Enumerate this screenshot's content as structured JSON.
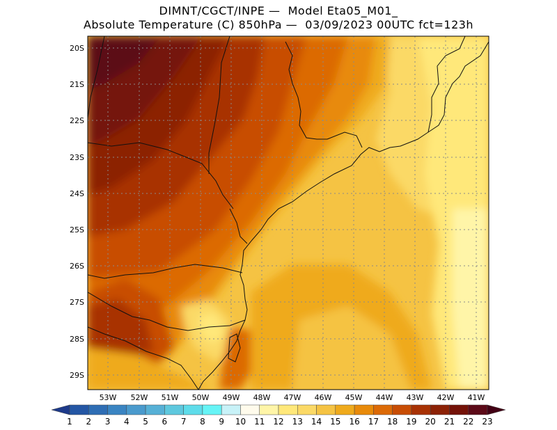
{
  "header": {
    "line1": "DIMNT/CGCT/INPE —  Model Eta05_M01_",
    "line2": "Absolute Temperature (C) 850hPa —  03/09/2023 00UTC fct=123h"
  },
  "map": {
    "variable": "Absolute Temperature (C) 850hPa",
    "lat_labels": [
      "20S",
      "21S",
      "22S",
      "23S",
      "24S",
      "25S",
      "26S",
      "27S",
      "28S",
      "29S"
    ],
    "lon_labels": [
      "53W",
      "52W",
      "51W",
      "50W",
      "49W",
      "48W",
      "47W",
      "46W",
      "45W",
      "44W",
      "43W",
      "42W",
      "41W"
    ]
  },
  "colorbar": {
    "labels": [
      "1",
      "2",
      "3",
      "4",
      "5",
      "6",
      "7",
      "8",
      "9",
      "10",
      "11",
      "12",
      "13",
      "14",
      "15",
      "16",
      "17",
      "18",
      "19",
      "20",
      "21",
      "22",
      "23"
    ],
    "colors": [
      "#1d3a8a",
      "#2456a4",
      "#2e6db4",
      "#3a84c2",
      "#4a9acd",
      "#56b0d6",
      "#5ec8de",
      "#5edcea",
      "#66f4f6",
      "#c8f2f8",
      "#fffbec",
      "#fff5a8",
      "#ffe87a",
      "#fbd966",
      "#f5c343",
      "#efaa1c",
      "#e88a0a",
      "#dc6a06",
      "#c84d04",
      "#a83204",
      "#8c2206",
      "#741208",
      "#5c0a18",
      "#420014"
    ]
  }
}
